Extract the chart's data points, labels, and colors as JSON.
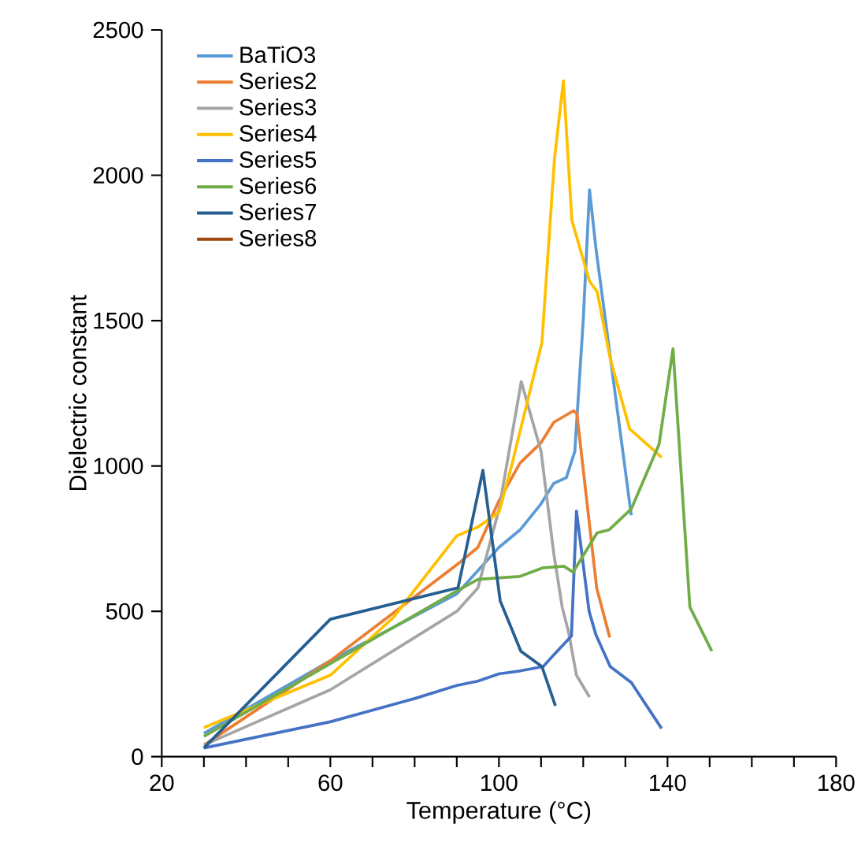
{
  "chart_data": {
    "type": "line",
    "xlabel": "Temperature (°C)",
    "ylabel": "Dielectric constant",
    "xlim": [
      20,
      180
    ],
    "ylim": [
      0,
      2500
    ],
    "xticks": [
      20,
      {
        "value": 30,
        "label": null
      },
      {
        "value": 40,
        "label": null
      },
      {
        "value": 50,
        "label": null
      },
      60,
      {
        "value": 70,
        "label": null
      },
      {
        "value": 80,
        "label": null
      },
      {
        "value": 90,
        "label": null
      },
      100,
      {
        "value": 110,
        "label": null
      },
      {
        "value": 120,
        "label": null
      },
      {
        "value": 130,
        "label": null
      },
      140,
      {
        "value": 150,
        "label": null
      },
      {
        "value": 160,
        "label": null
      },
      {
        "value": 170,
        "label": null
      },
      180
    ],
    "yticks": [
      0,
      500,
      1000,
      1500,
      2000,
      2500
    ],
    "grid": false,
    "legend": "top left",
    "marker": "none",
    "line_style": "solid",
    "series": [
      {
        "name": "BaTiO3",
        "color": "#5b9bd5",
        "x": [
          30,
          60,
          90,
          95,
          100,
          105,
          110,
          113,
          116,
          118,
          120,
          121.5,
          123,
          131.4
        ],
        "values": [
          80,
          330,
          560,
          640,
          720,
          780,
          870,
          940,
          960,
          1050,
          1500,
          1950,
          1750,
          830
        ]
      },
      {
        "name": "Series2",
        "color": "#ed7d31",
        "x": [
          30,
          60,
          90,
          95,
          100,
          105,
          110,
          113,
          117.7,
          118.5,
          123.2,
          126.3
        ],
        "values": [
          40,
          330,
          660,
          720,
          880,
          1010,
          1080,
          1150,
          1190,
          1180,
          580,
          410
        ]
      },
      {
        "name": "Series3",
        "color": "#a5a5a5",
        "x": [
          30,
          60,
          90,
          95,
          100,
          105.3,
          110,
          113,
          115,
          116.5,
          118.4,
          121.5
        ],
        "values": [
          40,
          230,
          500,
          580,
          850,
          1290,
          1050,
          700,
          515,
          430,
          280,
          205
        ]
      },
      {
        "name": "Series4",
        "color": "#ffc000",
        "x": [
          30,
          60,
          75,
          90,
          95,
          100,
          103,
          110.2,
          113.2,
          115.3,
          117.3,
          121.5,
          123.3,
          126.4,
          131,
          138.6
        ],
        "values": [
          100,
          280,
          480,
          760,
          790,
          840,
          1000,
          1425,
          2060,
          2325,
          1845,
          1635,
          1600,
          1370,
          1128,
          1030
        ]
      },
      {
        "name": "Series5",
        "color": "#4472c4",
        "x": [
          30,
          60,
          70,
          80,
          90,
          95,
          100,
          105,
          110.5,
          113,
          117.2,
          118.4,
          121.4,
          123,
          126.4,
          131.4,
          138.6
        ],
        "values": [
          30,
          120,
          160,
          200,
          245,
          260,
          285,
          295,
          310,
          350,
          415,
          845,
          500,
          420,
          310,
          255,
          97
        ]
      },
      {
        "name": "Series6",
        "color": "#70ad47",
        "x": [
          30,
          60,
          90,
          95,
          100,
          105,
          110.5,
          115.4,
          117.6,
          123.3,
          126.1,
          131.4,
          138,
          141.3,
          145.3,
          150.5
        ],
        "values": [
          70,
          320,
          570,
          610,
          615,
          620,
          650,
          655,
          635,
          770,
          780,
          852,
          1075,
          1403,
          515,
          363
        ]
      },
      {
        "name": "Series7",
        "color": "#255e91",
        "x": [
          30,
          60,
          90.3,
          96.2,
          100.3,
          105.2,
          110.2,
          113.4
        ],
        "values": [
          30,
          473,
          581,
          985,
          536,
          363,
          310,
          175
        ]
      },
      {
        "name": "Series8",
        "color": "#9e480e"
      }
    ]
  }
}
